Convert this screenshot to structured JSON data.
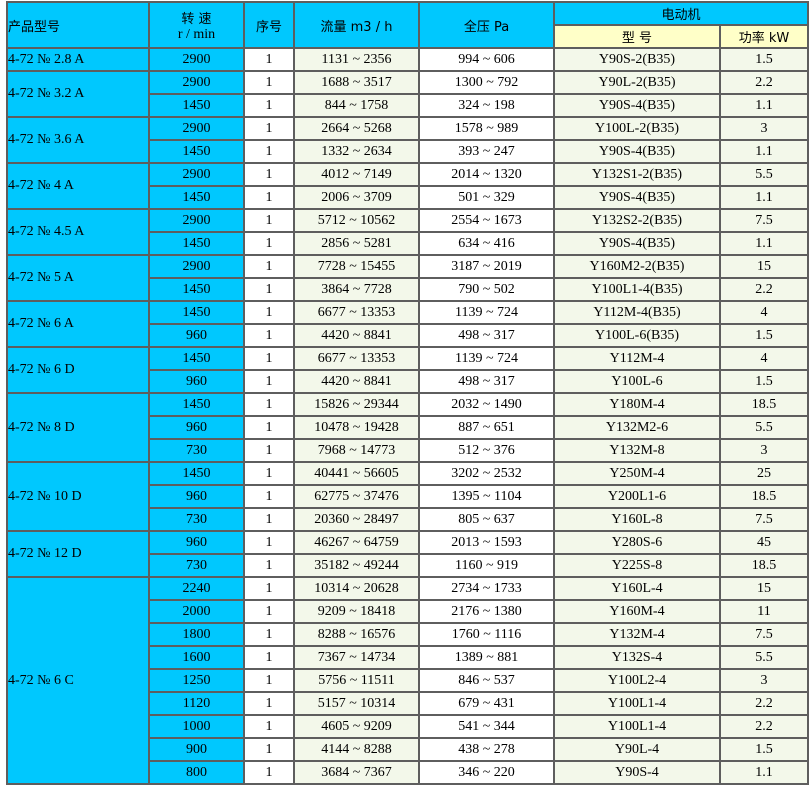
{
  "header": {
    "product_model": "产品型号",
    "speed": "转 速",
    "speed_unit": "r / min",
    "seq": "序号",
    "flow": "流量 m3 / h",
    "pressure": "全压 Pa",
    "motor": "电动机",
    "motor_model": "型 号",
    "motor_power": "功率 kW"
  },
  "colors": {
    "blue": "#00c8fe",
    "header_yellow": "#ffffc8",
    "light_green": "#f3f8ea",
    "border": "#5e5e5e"
  },
  "groups": [
    {
      "model": "4-72 № 2.8 A",
      "rows": [
        {
          "speed": "2900",
          "seq": "1",
          "flow": "1131 ~ 2356",
          "pressure": "994 ~ 606",
          "motor": "Y90S-2(B35)",
          "power": "1.5"
        }
      ]
    },
    {
      "model": "4-72 № 3.2 A",
      "rows": [
        {
          "speed": "2900",
          "seq": "1",
          "flow": "1688 ~ 3517",
          "pressure": "1300 ~ 792",
          "motor": "Y90L-2(B35)",
          "power": "2.2"
        },
        {
          "speed": "1450",
          "seq": "1",
          "flow": "844 ~ 1758",
          "pressure": "324 ~ 198",
          "motor": "Y90S-4(B35)",
          "power": "1.1"
        }
      ]
    },
    {
      "model": "4-72 № 3.6 A",
      "rows": [
        {
          "speed": "2900",
          "seq": "1",
          "flow": "2664 ~ 5268",
          "pressure": "1578 ~ 989",
          "motor": "Y100L-2(B35)",
          "power": "3"
        },
        {
          "speed": "1450",
          "seq": "1",
          "flow": "1332 ~ 2634",
          "pressure": "393 ~ 247",
          "motor": "Y90S-4(B35)",
          "power": "1.1"
        }
      ]
    },
    {
      "model": "4-72 № 4 A",
      "rows": [
        {
          "speed": "2900",
          "seq": "1",
          "flow": "4012 ~ 7149",
          "pressure": "2014 ~ 1320",
          "motor": "Y132S1-2(B35)",
          "power": "5.5"
        },
        {
          "speed": "1450",
          "seq": "1",
          "flow": "2006 ~ 3709",
          "pressure": "501 ~ 329",
          "motor": "Y90S-4(B35)",
          "power": "1.1"
        }
      ]
    },
    {
      "model": "4-72 № 4.5 A",
      "rows": [
        {
          "speed": "2900",
          "seq": "1",
          "flow": "5712 ~ 10562",
          "pressure": "2554 ~ 1673",
          "motor": "Y132S2-2(B35)",
          "power": "7.5"
        },
        {
          "speed": "1450",
          "seq": "1",
          "flow": "2856 ~ 5281",
          "pressure": "634 ~ 416",
          "motor": "Y90S-4(B35)",
          "power": "1.1"
        }
      ]
    },
    {
      "model": "4-72 № 5 A",
      "rows": [
        {
          "speed": "2900",
          "seq": "1",
          "flow": "7728 ~ 15455",
          "pressure": "3187 ~ 2019",
          "motor": "Y160M2-2(B35)",
          "power": "15"
        },
        {
          "speed": "1450",
          "seq": "1",
          "flow": "3864 ~ 7728",
          "pressure": "790 ~ 502",
          "motor": "Y100L1-4(B35)",
          "power": "2.2"
        }
      ]
    },
    {
      "model": "4-72 № 6 A",
      "rows": [
        {
          "speed": "1450",
          "seq": "1",
          "flow": "6677 ~ 13353",
          "pressure": "1139 ~ 724",
          "motor": "Y112M-4(B35)",
          "power": "4"
        },
        {
          "speed": "960",
          "seq": "1",
          "flow": "4420 ~ 8841",
          "pressure": "498 ~ 317",
          "motor": "Y100L-6(B35)",
          "power": "1.5"
        }
      ]
    },
    {
      "model": "4-72 № 6 D",
      "rows": [
        {
          "speed": "1450",
          "seq": "1",
          "flow": "6677 ~ 13353",
          "pressure": "1139 ~ 724",
          "motor": "Y112M-4",
          "power": "4"
        },
        {
          "speed": "960",
          "seq": "1",
          "flow": "4420 ~ 8841",
          "pressure": "498 ~ 317",
          "motor": "Y100L-6",
          "power": "1.5"
        }
      ]
    },
    {
      "model": "4-72 № 8 D",
      "rows": [
        {
          "speed": "1450",
          "seq": "1",
          "flow": "15826 ~ 29344",
          "pressure": "2032 ~ 1490",
          "motor": "Y180M-4",
          "power": "18.5"
        },
        {
          "speed": "960",
          "seq": "1",
          "flow": "10478 ~ 19428",
          "pressure": "887 ~ 651",
          "motor": "Y132M2-6",
          "power": "5.5"
        },
        {
          "speed": "730",
          "seq": "1",
          "flow": "7968 ~ 14773",
          "pressure": "512 ~ 376",
          "motor": "Y132M-8",
          "power": "3"
        }
      ]
    },
    {
      "model": "4-72 № 10 D",
      "rows": [
        {
          "speed": "1450",
          "seq": "1",
          "flow": "40441 ~ 56605",
          "pressure": "3202 ~ 2532",
          "motor": "Y250M-4",
          "power": "25"
        },
        {
          "speed": "960",
          "seq": "1",
          "flow": "62775 ~ 37476",
          "pressure": "1395 ~ 1104",
          "motor": "Y200L1-6",
          "power": "18.5"
        },
        {
          "speed": "730",
          "seq": "1",
          "flow": "20360 ~ 28497",
          "pressure": "805 ~ 637",
          "motor": "Y160L-8",
          "power": "7.5"
        }
      ]
    },
    {
      "model": "4-72 № 12 D",
      "rows": [
        {
          "speed": "960",
          "seq": "1",
          "flow": "46267 ~ 64759",
          "pressure": "2013 ~ 1593",
          "motor": "Y280S-6",
          "power": "45"
        },
        {
          "speed": "730",
          "seq": "1",
          "flow": "35182 ~ 49244",
          "pressure": "1160 ~ 919",
          "motor": "Y225S-8",
          "power": "18.5"
        }
      ]
    },
    {
      "model": "4-72 № 6 C",
      "rows": [
        {
          "speed": "2240",
          "seq": "1",
          "flow": "10314 ~ 20628",
          "pressure": "2734 ~ 1733",
          "motor": "Y160L-4",
          "power": "15"
        },
        {
          "speed": "2000",
          "seq": "1",
          "flow": "9209 ~ 18418",
          "pressure": "2176 ~ 1380",
          "motor": "Y160M-4",
          "power": "11"
        },
        {
          "speed": "1800",
          "seq": "1",
          "flow": "8288 ~ 16576",
          "pressure": "1760 ~ 1116",
          "motor": "Y132M-4",
          "power": "7.5"
        },
        {
          "speed": "1600",
          "seq": "1",
          "flow": "7367 ~ 14734",
          "pressure": "1389 ~ 881",
          "motor": "Y132S-4",
          "power": "5.5"
        },
        {
          "speed": "1250",
          "seq": "1",
          "flow": "5756 ~ 11511",
          "pressure": "846 ~ 537",
          "motor": "Y100L2-4",
          "power": "3"
        },
        {
          "speed": "1120",
          "seq": "1",
          "flow": "5157 ~ 10314",
          "pressure": "679 ~ 431",
          "motor": "Y100L1-4",
          "power": "2.2"
        },
        {
          "speed": "1000",
          "seq": "1",
          "flow": "4605 ~ 9209",
          "pressure": "541 ~ 344",
          "motor": "Y100L1-4",
          "power": "2.2"
        },
        {
          "speed": "900",
          "seq": "1",
          "flow": "4144 ~ 8288",
          "pressure": "438 ~ 278",
          "motor": "Y90L-4",
          "power": "1.5"
        },
        {
          "speed": "800",
          "seq": "1",
          "flow": "3684 ~ 7367",
          "pressure": "346 ~ 220",
          "motor": "Y90S-4",
          "power": "1.1"
        }
      ]
    }
  ]
}
